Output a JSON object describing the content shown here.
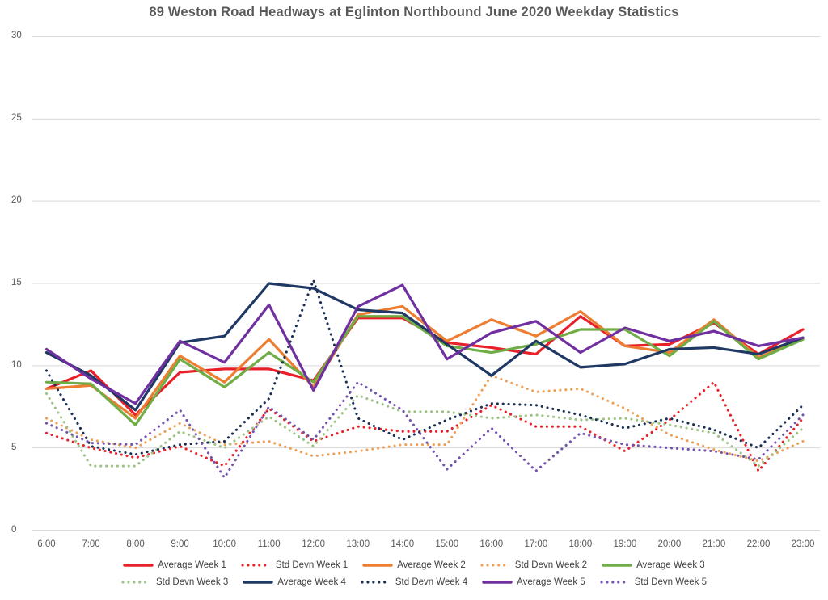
{
  "title": "89 Weston Road Headways at Eglinton Northbound June 2020 Weekday Statistics",
  "chart_data": {
    "type": "line",
    "title": "89 Weston Road Headways at Eglinton Northbound June 2020 Weekday Statistics",
    "xlabel": "",
    "ylabel": "",
    "x_categories": [
      "6:00",
      "7:00",
      "8:00",
      "9:00",
      "10:00",
      "11:00",
      "12:00",
      "13:00",
      "14:00",
      "15:00",
      "16:00",
      "17:00",
      "18:00",
      "19:00",
      "20:00",
      "21:00",
      "22:00",
      "23:00"
    ],
    "y_axis": {
      "min": 0,
      "max": 30,
      "tick_interval": 5,
      "ticks": [
        0,
        5,
        10,
        15,
        20,
        25,
        30
      ]
    },
    "grid": true,
    "legend_position": "bottom",
    "legend_rows": [
      [
        0,
        1,
        2,
        3,
        4
      ],
      [
        5,
        6,
        7,
        8,
        9
      ]
    ],
    "series": [
      {
        "name": "Average Week 1",
        "style": "solid",
        "color": "#e8202a",
        "values": [
          8.6,
          9.7,
          7.0,
          9.6,
          9.8,
          9.8,
          9.1,
          12.9,
          12.9,
          11.4,
          11.1,
          10.7,
          13.0,
          11.2,
          11.3,
          12.6,
          10.7,
          12.2
        ]
      },
      {
        "name": "Std Devn Week 1",
        "style": "dotted",
        "color": "#e8202a",
        "values": [
          5.9,
          5.0,
          4.4,
          5.1,
          3.9,
          7.4,
          5.4,
          6.3,
          6.0,
          6.0,
          7.6,
          6.3,
          6.3,
          4.8,
          6.7,
          9.0,
          3.6,
          6.8
        ]
      },
      {
        "name": "Average Week 2",
        "style": "solid",
        "color": "#ed7d31",
        "values": [
          8.6,
          8.8,
          6.8,
          10.6,
          9.0,
          11.6,
          8.7,
          13.1,
          13.6,
          11.5,
          12.8,
          11.8,
          13.3,
          11.2,
          10.8,
          12.8,
          10.5,
          11.6
        ]
      },
      {
        "name": "Std Devn Week 2",
        "style": "dotted",
        "color": "#eda159",
        "values": [
          6.8,
          5.5,
          5.0,
          6.5,
          5.2,
          5.4,
          4.5,
          4.8,
          5.2,
          5.2,
          9.4,
          8.4,
          8.6,
          7.4,
          5.8,
          4.9,
          4.2,
          5.4
        ]
      },
      {
        "name": "Average Week 3",
        "style": "solid",
        "color": "#70ad47",
        "values": [
          9.0,
          8.9,
          6.4,
          10.4,
          8.7,
          10.8,
          9.0,
          13.0,
          13.0,
          11.2,
          10.8,
          11.3,
          12.2,
          12.2,
          10.6,
          12.7,
          10.4,
          11.6
        ]
      },
      {
        "name": "Std Devn Week 3",
        "style": "dotted",
        "color": "#9dc384",
        "values": [
          8.3,
          3.9,
          3.9,
          6.0,
          5.0,
          6.9,
          5.1,
          8.2,
          7.2,
          7.2,
          6.8,
          7.0,
          6.7,
          6.8,
          6.4,
          5.9,
          3.9,
          6.2
        ]
      },
      {
        "name": "Average Week 4",
        "style": "solid",
        "color": "#203864",
        "values": [
          10.8,
          9.4,
          7.3,
          11.4,
          11.8,
          15.0,
          14.7,
          13.4,
          13.2,
          11.3,
          9.4,
          11.5,
          9.9,
          10.1,
          11.0,
          11.1,
          10.7,
          11.7
        ]
      },
      {
        "name": "Std Devn Week 4",
        "style": "dotted",
        "color": "#1a2f55",
        "values": [
          9.7,
          5.1,
          4.6,
          5.2,
          5.4,
          8.0,
          15.2,
          6.8,
          5.5,
          6.7,
          7.7,
          7.6,
          7.0,
          6.2,
          6.8,
          6.1,
          5.0,
          7.6
        ]
      },
      {
        "name": "Average Week 5",
        "style": "solid",
        "color": "#7030a0",
        "values": [
          11.0,
          9.2,
          7.7,
          11.5,
          10.2,
          13.7,
          8.5,
          13.6,
          14.9,
          10.4,
          12.0,
          12.7,
          10.8,
          12.3,
          11.5,
          12.1,
          11.2,
          11.7
        ]
      },
      {
        "name": "Std Devn Week 5",
        "style": "dotted",
        "color": "#7454ad",
        "values": [
          6.5,
          5.3,
          5.2,
          7.3,
          3.2,
          7.5,
          5.5,
          9.0,
          7.3,
          3.7,
          6.2,
          3.6,
          5.9,
          5.2,
          5.0,
          4.8,
          4.3,
          7.0
        ]
      }
    ],
    "gridline_color": "#d9d9d9",
    "axis_text_color": "#595959",
    "title_color": "#595959",
    "legend_text_color": "#404040"
  }
}
